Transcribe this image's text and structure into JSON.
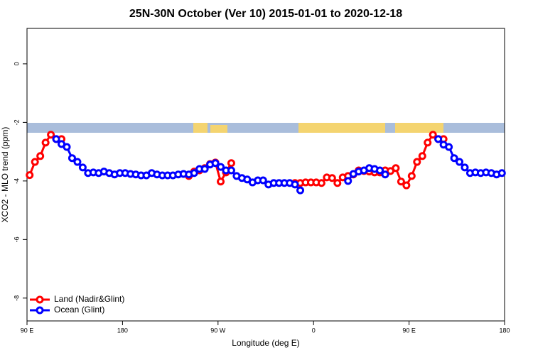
{
  "chart_data": {
    "type": "line",
    "title": "25N-30N October (Ver 10)   2015-01-01 to 2020-12-18",
    "x_label": "Longitude (deg E)",
    "y_label": "XCO2 - MLO trend (ppm)",
    "x": [
      92.5,
      97.5,
      102.5,
      107.5,
      112.5,
      117.5,
      122.5,
      127.5,
      132.5,
      137.5,
      142.5,
      147.5,
      152.5,
      157.5,
      162.5,
      167.5,
      172.5,
      177.5,
      182.5,
      187.5,
      192.5,
      197.5,
      202.5,
      207.5,
      212.5,
      217.5,
      222.5,
      227.5,
      232.5,
      237.5,
      242.5,
      247.5,
      252.5,
      257.5,
      262.5,
      267.5,
      272.5,
      277.5,
      282.5,
      287.5,
      292.5,
      297.5,
      302.5,
      307.5,
      312.5,
      317.5,
      322.5,
      327.5,
      332.5,
      337.5,
      342.5,
      347.5,
      352.5,
      357.5,
      362.5,
      367.5,
      372.5,
      377.5,
      382.5,
      387.5,
      392.5,
      397.5,
      402.5,
      407.5,
      412.5,
      417.5,
      422.5,
      427.5,
      432.5,
      437.5,
      442.5,
      447.5,
      452.5,
      457.5,
      462.5,
      467.5,
      472.5,
      477.5,
      482.5,
      487.5,
      492.5,
      497.5,
      502.5,
      507.5,
      512.5,
      517.5,
      522.5,
      527.5,
      532.5,
      537.5
    ],
    "series": [
      {
        "name": "Land (Nadir&Glint)",
        "color": "#ff0000",
        "values": [
          -3.8,
          -3.35,
          -3.15,
          -2.69,
          -2.42,
          -2.57,
          -2.57,
          null,
          null,
          null,
          null,
          null,
          null,
          null,
          null,
          null,
          null,
          null,
          null,
          null,
          null,
          null,
          null,
          null,
          null,
          null,
          null,
          null,
          null,
          null,
          -3.83,
          -3.68,
          -3.64,
          -3.56,
          -3.42,
          -3.37,
          -4.02,
          -3.71,
          -3.39,
          null,
          null,
          null,
          null,
          null,
          null,
          null,
          null,
          null,
          null,
          null,
          -4.07,
          -4.07,
          -4.05,
          -4.05,
          -4.05,
          -4.07,
          -3.88,
          -3.9,
          -4.07,
          -3.88,
          -3.83,
          -3.78,
          -3.64,
          -3.66,
          -3.68,
          -3.71,
          -3.71,
          -3.64,
          -3.66,
          -3.56,
          -4.02,
          -4.15,
          -3.83,
          -3.35,
          -3.15,
          -2.69,
          -2.42,
          -2.57,
          -2.57,
          null,
          null,
          null,
          null,
          null,
          null,
          null,
          null,
          null,
          null,
          null
        ]
      },
      {
        "name": "Ocean (Glint)",
        "color": "#0000ff",
        "values": [
          null,
          null,
          null,
          null,
          null,
          -2.57,
          -2.74,
          -2.84,
          -3.22,
          -3.35,
          -3.54,
          -3.73,
          -3.71,
          -3.73,
          -3.68,
          -3.73,
          -3.78,
          -3.73,
          -3.73,
          -3.76,
          -3.78,
          -3.81,
          -3.81,
          -3.73,
          -3.78,
          -3.81,
          -3.81,
          -3.81,
          -3.78,
          -3.76,
          -3.78,
          -3.73,
          -3.59,
          -3.59,
          -3.44,
          -3.39,
          -3.52,
          -3.64,
          -3.64,
          -3.83,
          -3.9,
          -3.95,
          -4.05,
          -3.98,
          -3.98,
          -4.12,
          -4.07,
          -4.07,
          -4.07,
          -4.07,
          -4.12,
          -4.32,
          null,
          null,
          null,
          null,
          null,
          null,
          null,
          null,
          -4.0,
          -3.76,
          -3.68,
          -3.64,
          -3.56,
          -3.59,
          -3.64,
          -3.78,
          null,
          null,
          null,
          null,
          null,
          null,
          null,
          null,
          null,
          -2.57,
          -2.76,
          -2.84,
          -3.22,
          -3.35,
          -3.54,
          -3.73,
          -3.71,
          -3.73,
          -3.71,
          -3.73,
          -3.78,
          -3.73
        ]
      }
    ],
    "xlim": [
      90,
      540
    ],
    "xticks": [
      {
        "value": 90,
        "label": "90 E"
      },
      180,
      {
        "value": 270,
        "label": "90 W"
      },
      {
        "value": 360,
        "label": "0"
      },
      {
        "value": 450,
        "label": "90 E"
      },
      {
        "value": 540,
        "label": "180"
      }
    ],
    "ylim": [
      -8.78,
      1.21
    ],
    "yticks": [
      0,
      -2,
      -4,
      -6,
      -8
    ],
    "legend": "bottom-left"
  }
}
